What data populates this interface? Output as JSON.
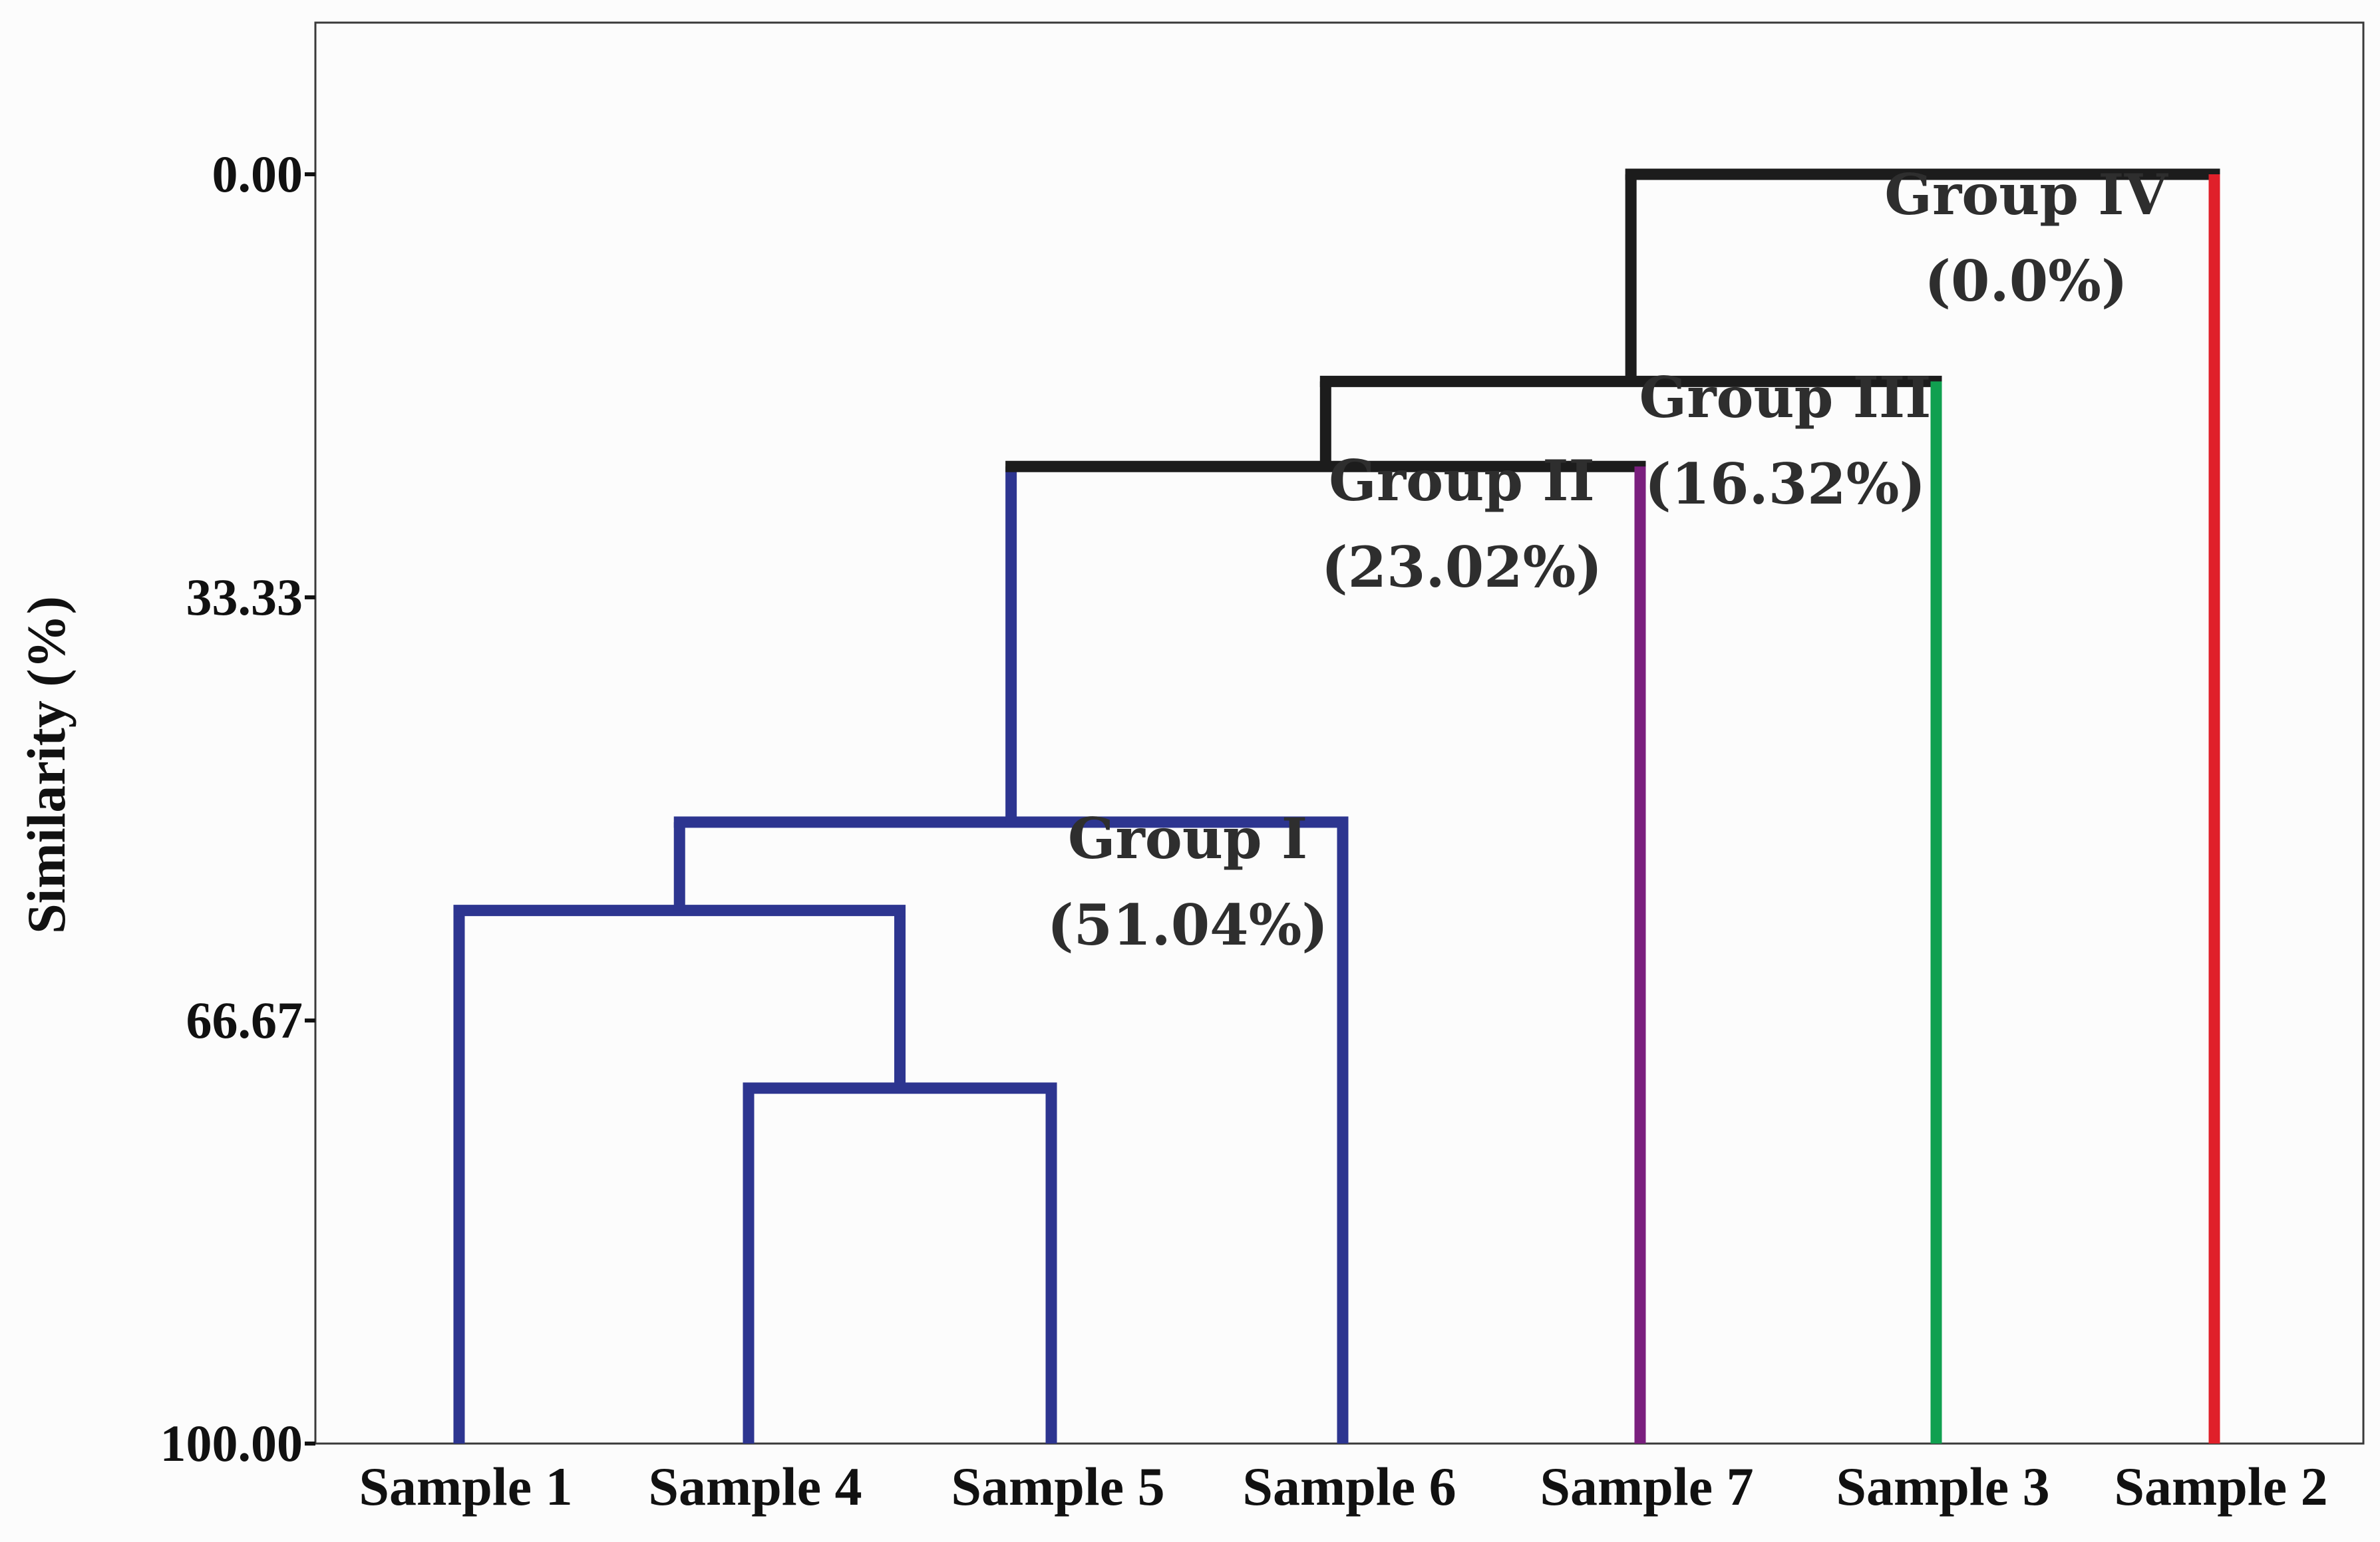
{
  "chart_data": {
    "type": "dendrogram",
    "ylabel": "Similarity (%)",
    "ylim": [
      0,
      100
    ],
    "y_inverted": true,
    "yticks": [
      "0.00",
      "33.33",
      "66.67",
      "100.00"
    ],
    "ytick_values": [
      0,
      33.33,
      66.67,
      100
    ],
    "leaves": [
      "Sample 1",
      "Sample 4",
      "Sample 5",
      "Sample 6",
      "Sample 7",
      "Sample 3",
      "Sample 2"
    ],
    "merges": [
      {
        "a": "Sample 4",
        "b": "Sample 5",
        "similarity": 72,
        "group": "I"
      },
      {
        "a": "Sample 1",
        "b": "Sample 4 + Sample 5",
        "similarity": 58,
        "group": "I"
      },
      {
        "a": "Sample 1 + Sample 4 + Sample 5",
        "b": "Sample 6",
        "similarity": 51.04,
        "group": "I"
      },
      {
        "a": "Group I",
        "b": "Sample 7",
        "similarity": 23.02,
        "group": null
      },
      {
        "a": "Group I + Group II",
        "b": "Sample 3",
        "similarity": 16.32,
        "group": null
      },
      {
        "a": "Group I + Group II + Group III",
        "b": "Sample 2",
        "similarity": 0.0,
        "group": null
      }
    ],
    "groups": [
      {
        "name": "Group I",
        "value_label": "(51.04%)",
        "similarity": 51.04,
        "members": [
          "Sample 1",
          "Sample 4",
          "Sample 5",
          "Sample 6"
        ],
        "color": "#2d3590"
      },
      {
        "name": "Group II",
        "value_label": "(23.02%)",
        "similarity": 23.02,
        "members": [
          "Sample 7"
        ],
        "color": "#7a1f7e"
      },
      {
        "name": "Group III",
        "value_label": "(16.32%)",
        "similarity": 16.32,
        "members": [
          "Sample 3"
        ],
        "color": "#10a050"
      },
      {
        "name": "Group IV",
        "value_label": "(0.0%)",
        "similarity": 0.0,
        "members": [
          "Sample 2"
        ],
        "color": "#e0202a"
      }
    ],
    "link_color": "#1c1c1c"
  }
}
